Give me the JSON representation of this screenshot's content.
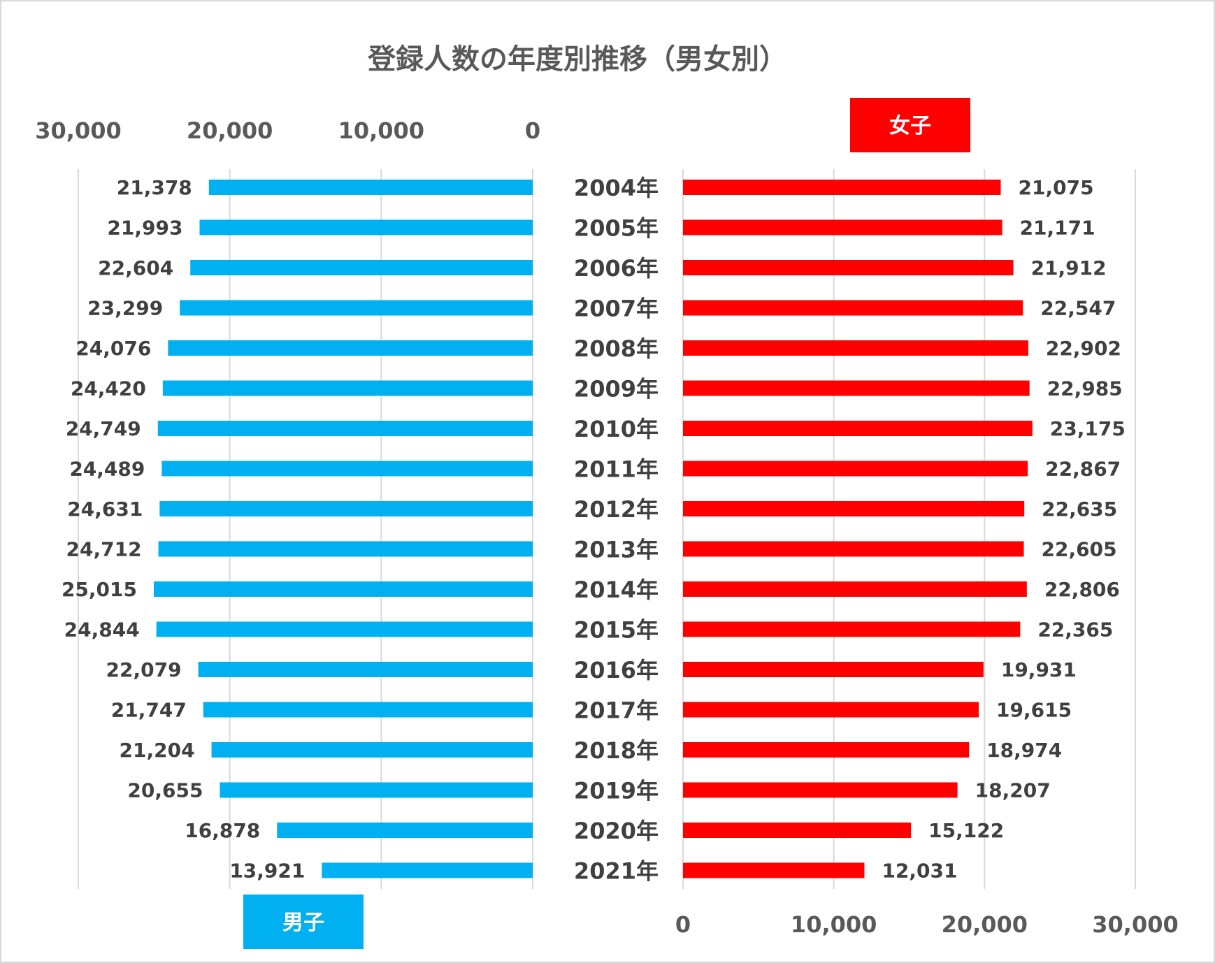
{
  "chart_data": {
    "type": "bar",
    "orientation": "horizontal-butterfly",
    "title": "登録人数の年度別推移（男女別）",
    "categories": [
      "2004年",
      "2005年",
      "2006年",
      "2007年",
      "2008年",
      "2009年",
      "2010年",
      "2011年",
      "2012年",
      "2013年",
      "2014年",
      "2015年",
      "2016年",
      "2017年",
      "2018年",
      "2019年",
      "2020年",
      "2021年"
    ],
    "series": [
      {
        "name": "男子",
        "color": "#00b0f0",
        "side": "left",
        "values": [
          21378,
          21993,
          22604,
          23299,
          24076,
          24420,
          24749,
          24489,
          24631,
          24712,
          25015,
          24844,
          22079,
          21747,
          21204,
          20655,
          16878,
          13921
        ],
        "labels": [
          "21,378",
          "21,993",
          "22,604",
          "23,299",
          "24,076",
          "24,420",
          "24,749",
          "24,489",
          "24,631",
          "24,712",
          "25,015",
          "24,844",
          "22,079",
          "21,747",
          "21,204",
          "20,655",
          "16,878",
          "13,921"
        ]
      },
      {
        "name": "女子",
        "color": "#ff0000",
        "side": "right",
        "values": [
          21075,
          21171,
          21912,
          22547,
          22902,
          22985,
          23175,
          22867,
          22635,
          22605,
          22806,
          22365,
          19931,
          19615,
          18974,
          18207,
          15122,
          12031
        ],
        "labels": [
          "21,075",
          "21,171",
          "21,912",
          "22,547",
          "22,902",
          "22,985",
          "23,175",
          "22,867",
          "22,635",
          "22,605",
          "22,806",
          "22,365",
          "19,931",
          "19,615",
          "18,974",
          "18,207",
          "15,122",
          "12,031"
        ]
      }
    ],
    "xlim": [
      0,
      30000
    ],
    "left_ticks": [
      "30,000",
      "20,000",
      "10,000",
      "0"
    ],
    "left_tick_values": [
      30000,
      20000,
      10000,
      0
    ],
    "right_ticks": [
      "0",
      "10,000",
      "20,000",
      "30,000"
    ],
    "right_tick_values": [
      0,
      10000,
      20000,
      30000
    ],
    "grid": true,
    "legend": [
      {
        "label": "女子",
        "color": "#ff0000",
        "placement": "top-right"
      },
      {
        "label": "男子",
        "color": "#00b0f0",
        "placement": "bottom-left"
      }
    ]
  }
}
